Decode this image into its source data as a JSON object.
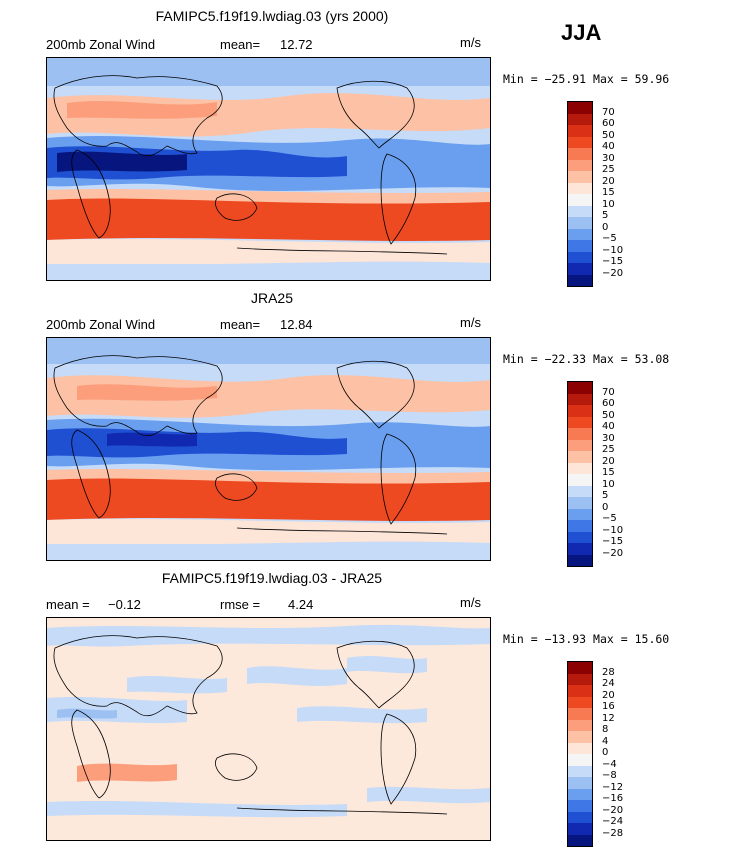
{
  "season": "JJA",
  "panels": [
    {
      "title": "FAMIPC5.f19f19.lwdiag.03 (yrs 2000)",
      "left_label": "200mb Zonal Wind",
      "stat_label": "mean=",
      "stat_value": "12.72",
      "units": "m/s",
      "min_label": "Min =",
      "min_value": "−25.91",
      "max_label": "Max =",
      "max_value": "59.96",
      "levels": [
        "70",
        "60",
        "50",
        "40",
        "30",
        "25",
        "20",
        "15",
        "10",
        "5",
        "0",
        "−5",
        "−10",
        "−15",
        "−20"
      ],
      "colors": [
        "#8b0000",
        "#b61a0c",
        "#d93016",
        "#ee4a22",
        "#f87a52",
        "#fc9e7c",
        "#fdc2a6",
        "#fde5d8",
        "#f5f5f5",
        "#c6dbf7",
        "#9dc0f3",
        "#6a9ff0",
        "#3f78e6",
        "#1f50d2",
        "#1129b0",
        "#07157e"
      ],
      "map_fill": {
        "base": "#fdd5c0"
      }
    },
    {
      "title": "JRA25",
      "left_label": "200mb Zonal Wind",
      "stat_label": "mean=",
      "stat_value": "12.84",
      "units": "m/s",
      "min_label": "Min =",
      "min_value": "−22.33",
      "max_label": "Max =",
      "max_value": "53.08",
      "levels": [
        "70",
        "60",
        "50",
        "40",
        "30",
        "25",
        "20",
        "15",
        "10",
        "5",
        "0",
        "−5",
        "−10",
        "−15",
        "−20"
      ],
      "colors": [
        "#8b0000",
        "#b61a0c",
        "#d93016",
        "#ee4a22",
        "#f87a52",
        "#fc9e7c",
        "#fdc2a6",
        "#fde5d8",
        "#f5f5f5",
        "#c6dbf7",
        "#9dc0f3",
        "#6a9ff0",
        "#3f78e6",
        "#1f50d2",
        "#1129b0",
        "#07157e"
      ],
      "map_fill": {
        "base": "#fdd5c0"
      }
    },
    {
      "title": "FAMIPC5.f19f19.lwdiag.03 - JRA25",
      "left_label": "mean =",
      "left_value": "−0.12",
      "stat_label": "rmse =",
      "stat_value": "4.24",
      "units": "m/s",
      "min_label": "Min =",
      "min_value": "−13.93",
      "max_label": "Max =",
      "max_value": "15.60",
      "levels": [
        "28",
        "24",
        "20",
        "16",
        "12",
        "8",
        "4",
        "0",
        "−4",
        "−8",
        "−12",
        "−16",
        "−20",
        "−24",
        "−28"
      ],
      "colors": [
        "#8b0000",
        "#b61a0c",
        "#d93016",
        "#ee4a22",
        "#f87a52",
        "#fc9e7c",
        "#fdc2a6",
        "#fde5d8",
        "#f5f5f5",
        "#c6dbf7",
        "#9dc0f3",
        "#6a9ff0",
        "#3f78e6",
        "#1f50d2",
        "#1129b0",
        "#07157e"
      ],
      "map_fill": {
        "base": "#fde8dc"
      }
    }
  ]
}
